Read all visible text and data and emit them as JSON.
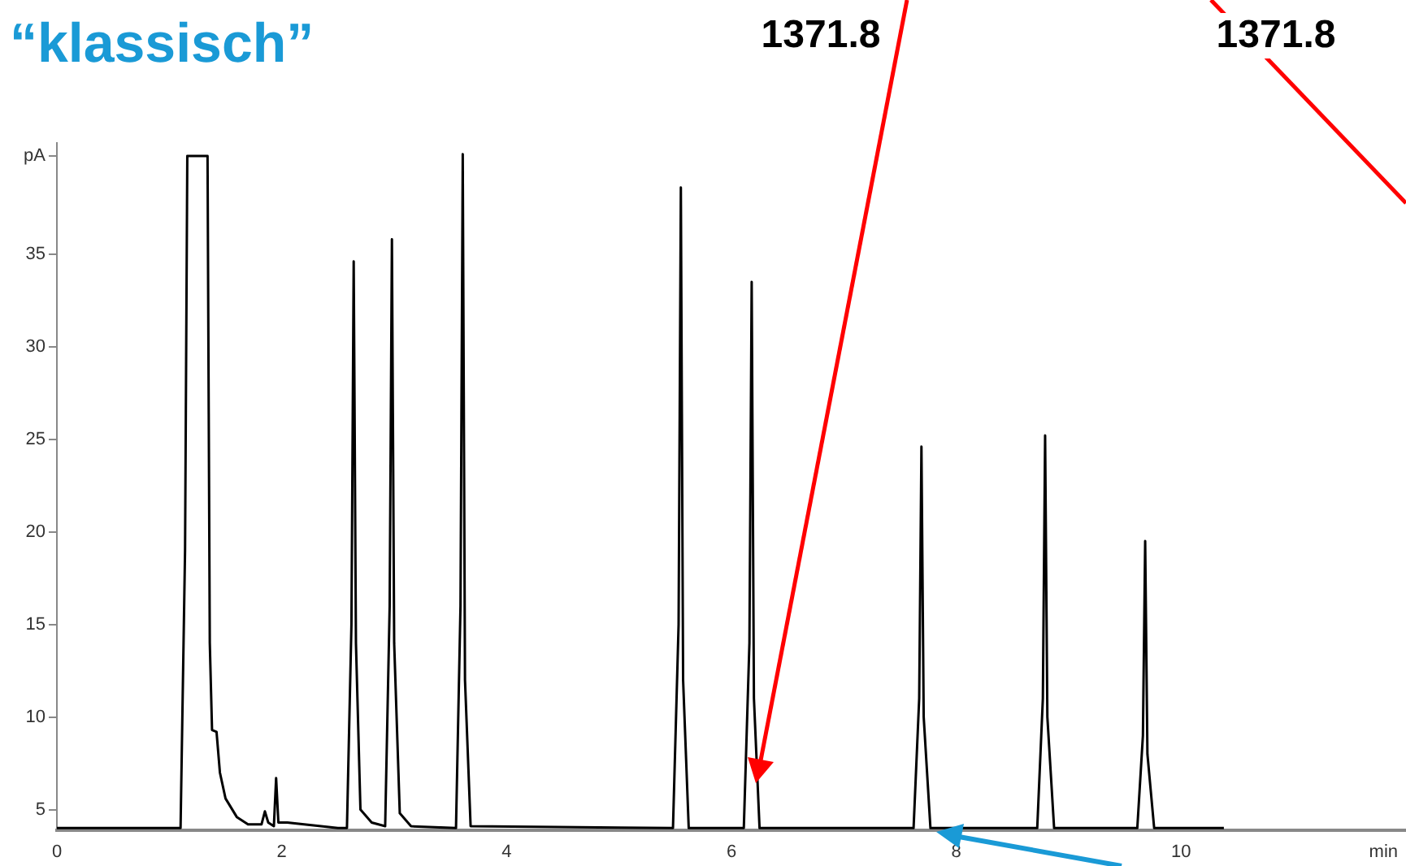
{
  "chart_data": {
    "type": "line",
    "title": "“klassisch”",
    "annotations": [
      "1371.8",
      "1371.8"
    ],
    "xlim": [
      0,
      12.0
    ],
    "xticks": [
      0,
      2,
      4,
      6,
      8,
      10,
      {
        "value": 11.8,
        "label": "min"
      }
    ],
    "ylim": [
      3.9,
      41
    ],
    "yticks": [
      5,
      10,
      15,
      20,
      25,
      30,
      35,
      {
        "value": 40.3,
        "label": "pA"
      }
    ],
    "legend": false,
    "series": [
      {
        "color": "#000000",
        "x": [
          0,
          1.1,
          1.14,
          1.16,
          1.34,
          1.36,
          1.38,
          1.42,
          1.45,
          1.5,
          1.6,
          1.7,
          1.82,
          1.85,
          1.88,
          1.93,
          1.95,
          1.97,
          2.05,
          2.5,
          2.58,
          2.62,
          2.64,
          2.66,
          2.7,
          2.8,
          2.92,
          2.96,
          2.98,
          3.0,
          3.05,
          3.15,
          3.55,
          3.59,
          3.61,
          3.63,
          3.68,
          5.48,
          5.53,
          5.55,
          5.57,
          5.62,
          6.11,
          6.16,
          6.18,
          6.2,
          6.25,
          7.62,
          7.67,
          7.69,
          7.71,
          7.77,
          8.72,
          8.77,
          8.79,
          8.81,
          8.87,
          9.61,
          9.66,
          9.68,
          9.7,
          9.76,
          10.38
        ],
        "values": [
          4.0,
          4.0,
          19,
          40.3,
          40.3,
          14,
          9.3,
          9.2,
          7,
          5.6,
          4.6,
          4.2,
          4.2,
          4.9,
          4.3,
          4.1,
          6.7,
          4.3,
          4.3,
          4.0,
          4.0,
          15,
          34.6,
          14,
          5.0,
          4.3,
          4.1,
          16,
          35.8,
          14,
          4.8,
          4.1,
          4.0,
          16,
          40.4,
          12,
          4.1,
          4.0,
          15,
          38.6,
          12,
          4.0,
          4.0,
          14,
          33.5,
          11,
          4.0,
          4.0,
          11,
          24.6,
          10,
          4.0,
          4.0,
          11,
          25.2,
          10,
          4.0,
          4.0,
          9,
          19.5,
          8,
          4.0,
          4.0
        ]
      }
    ]
  }
}
